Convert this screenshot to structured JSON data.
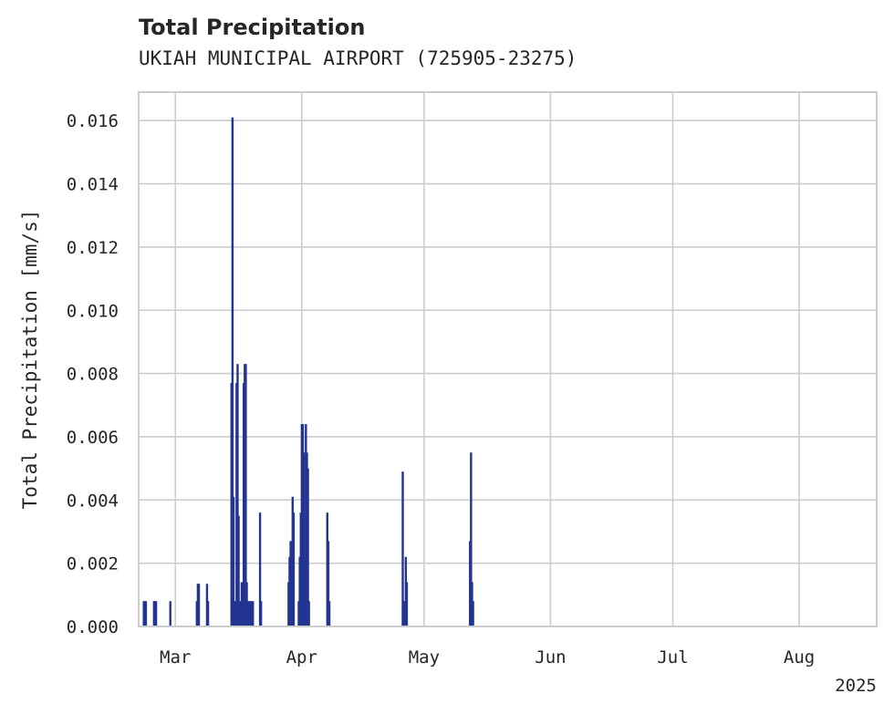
{
  "chart_data": {
    "type": "bar",
    "title": "Total Precipitation",
    "subtitle": "UKIAH MUNICIPAL AIRPORT (725905-23275)",
    "ylabel": "Total Precipitation [mm/s]",
    "xlabel": "",
    "year_label": "2025",
    "ylim": [
      0,
      0.0169
    ],
    "xlim": [
      "2025-02-20",
      "2025-08-20"
    ],
    "yticks": [
      0.0,
      0.002,
      0.004,
      0.006,
      0.008,
      0.01,
      0.012,
      0.014,
      0.016
    ],
    "ytick_labels": [
      "0.000",
      "0.002",
      "0.004",
      "0.006",
      "0.008",
      "0.010",
      "0.012",
      "0.014",
      "0.016"
    ],
    "xticks": [
      "2025-03-01",
      "2025-04-01",
      "2025-05-01",
      "2025-06-01",
      "2025-07-01",
      "2025-08-01"
    ],
    "xtick_labels": [
      "Mar",
      "Apr",
      "May",
      "Jun",
      "Jul",
      "Aug"
    ],
    "grid": true,
    "bar_color": "#233591",
    "x": [
      "2025-02-21T00:00",
      "2025-02-21T06:00",
      "2025-02-21T12:00",
      "2025-02-23T12:00",
      "2025-02-23T18:00",
      "2025-02-24T00:00",
      "2025-02-27T12:00",
      "2025-03-06T00:00",
      "2025-03-06T06:00",
      "2025-03-06T12:00",
      "2025-03-08T12:00",
      "2025-03-08T18:00",
      "2025-03-14T12:00",
      "2025-03-14T18:00",
      "2025-03-15T00:00",
      "2025-03-15T06:00",
      "2025-03-15T12:00",
      "2025-03-15T18:00",
      "2025-03-16T00:00",
      "2025-03-16T06:00",
      "2025-03-16T12:00",
      "2025-03-16T18:00",
      "2025-03-17T00:00",
      "2025-03-17T06:00",
      "2025-03-17T12:00",
      "2025-03-17T18:00",
      "2025-03-18T00:00",
      "2025-03-18T06:00",
      "2025-03-18T12:00",
      "2025-03-18T18:00",
      "2025-03-19T00:00",
      "2025-03-19T06:00",
      "2025-03-19T12:00",
      "2025-03-19T18:00",
      "2025-03-21T12:00",
      "2025-03-21T18:00",
      "2025-03-28T12:00",
      "2025-03-28T18:00",
      "2025-03-29T00:00",
      "2025-03-29T06:00",
      "2025-03-29T12:00",
      "2025-03-29T18:00",
      "2025-03-31T00:00",
      "2025-03-31T06:00",
      "2025-03-31T12:00",
      "2025-03-31T18:00",
      "2025-04-01T00:00",
      "2025-04-01T06:00",
      "2025-04-01T12:00",
      "2025-04-01T18:00",
      "2025-04-02T00:00",
      "2025-04-02T06:00",
      "2025-04-02T12:00",
      "2025-04-07T00:00",
      "2025-04-07T06:00",
      "2025-04-07T12:00",
      "2025-04-25T12:00",
      "2025-04-25T18:00",
      "2025-04-26T00:00",
      "2025-04-26T06:00",
      "2025-04-26T12:00",
      "2025-05-12T00:00",
      "2025-05-12T06:00",
      "2025-05-12T12:00",
      "2025-05-12T18:00"
    ],
    "values": [
      0.0008,
      0.0008,
      0.0008,
      0.0008,
      0.0008,
      0.0008,
      0.0008,
      0.0008,
      0.00135,
      0.00135,
      0.00135,
      0.0008,
      0.0077,
      0.0161,
      0.0041,
      0.0008,
      0.0008,
      0.0077,
      0.0083,
      0.0035,
      0.0008,
      0.0008,
      0.0014,
      0.0008,
      0.0077,
      0.0083,
      0.0083,
      0.0014,
      0.0008,
      0.0008,
      0.0008,
      0.0008,
      0.0008,
      0.0008,
      0.0036,
      0.0008,
      0.0014,
      0.0022,
      0.0027,
      0.0027,
      0.0041,
      0.0036,
      0.0008,
      0.0022,
      0.0036,
      0.0064,
      0.0064,
      0.0055,
      0.0022,
      0.0064,
      0.0055,
      0.005,
      0.0008,
      0.0036,
      0.0027,
      0.0008,
      0.0049,
      0.0008,
      0.0008,
      0.0022,
      0.0014,
      0.0027,
      0.0055,
      0.0014,
      0.0008
    ]
  }
}
